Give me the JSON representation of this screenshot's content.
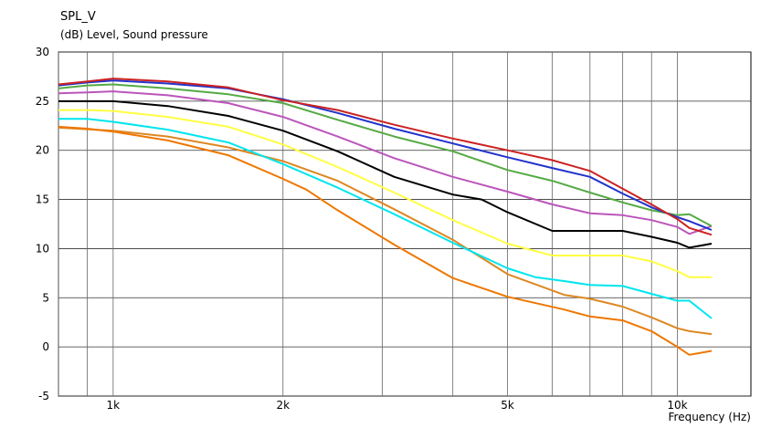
{
  "chart_data": {
    "type": "line",
    "title": "SPL_V",
    "ylabel": "(dB)  Level, Sound pressure",
    "xlabel": "Frequency  (Hz)",
    "xscale": "log",
    "xlim": [
      800,
      13500
    ],
    "ylim": [
      -5,
      30
    ],
    "yticks": [
      30,
      25,
      20,
      15,
      10,
      5,
      0,
      -5
    ],
    "xticks": [
      {
        "v": 1000,
        "label": "1k"
      },
      {
        "v": 2000,
        "label": "2k"
      },
      {
        "v": 5000,
        "label": "5k"
      },
      {
        "v": 10000,
        "label": "10k"
      }
    ],
    "x_minor": [
      800,
      900,
      1000,
      2000,
      3000,
      4000,
      5000,
      6000,
      7000,
      8000,
      9000,
      10000
    ],
    "grid": true,
    "series": [
      {
        "color": "#dd8822",
        "x": [
          800,
          1000,
          1250,
          1600,
          2000,
          2500,
          3150,
          4000,
          5000,
          6300,
          7000,
          8000,
          9000,
          10000,
          10500,
          11500
        ],
        "y": [
          22.3,
          22.0,
          21.4,
          20.3,
          18.9,
          16.9,
          14.0,
          10.9,
          7.4,
          5.3,
          4.9,
          4.1,
          3.0,
          1.9,
          1.6,
          1.3
        ]
      },
      {
        "color": "#ee7700",
        "x": [
          800,
          900,
          1000,
          1250,
          1600,
          2000,
          2200,
          2500,
          3150,
          4000,
          5000,
          6300,
          7000,
          8000,
          9000,
          10000,
          10500,
          11500
        ],
        "y": [
          22.4,
          22.2,
          21.9,
          21.0,
          19.5,
          17.1,
          16.0,
          13.9,
          10.4,
          7.0,
          5.1,
          3.8,
          3.1,
          2.7,
          1.6,
          0.0,
          -0.8,
          -0.4
        ]
      },
      {
        "color": "#00e5ee",
        "x": [
          800,
          900,
          1000,
          1250,
          1600,
          2000,
          2500,
          3150,
          4000,
          5000,
          5600,
          6300,
          7000,
          8000,
          9000,
          10000,
          10500,
          11500
        ],
        "y": [
          23.2,
          23.2,
          22.9,
          22.1,
          20.8,
          18.6,
          16.2,
          13.5,
          10.6,
          8.0,
          7.1,
          6.7,
          6.3,
          6.2,
          5.4,
          4.7,
          4.7,
          2.9
        ]
      },
      {
        "color": "#ffff44",
        "x": [
          800,
          900,
          1000,
          1250,
          1600,
          2000,
          2500,
          3150,
          4000,
          5000,
          6000,
          7000,
          8000,
          9000,
          10000,
          10500,
          11500
        ],
        "y": [
          24.1,
          24.1,
          24.0,
          23.4,
          22.4,
          20.6,
          18.3,
          15.7,
          12.9,
          10.5,
          9.3,
          9.3,
          9.3,
          8.7,
          7.7,
          7.1,
          7.1
        ]
      },
      {
        "color": "#000000",
        "x": [
          800,
          900,
          1000,
          1250,
          1600,
          2000,
          2500,
          3150,
          4000,
          4500,
          5000,
          6000,
          7000,
          8000,
          9000,
          10000,
          10500,
          11500
        ],
        "y": [
          25.0,
          25.0,
          25.0,
          24.5,
          23.5,
          22.0,
          19.9,
          17.3,
          15.5,
          15.0,
          13.7,
          11.8,
          11.8,
          11.8,
          11.2,
          10.6,
          10.1,
          10.5
        ]
      },
      {
        "color": "#bb55bb",
        "x": [
          800,
          900,
          1000,
          1250,
          1600,
          2000,
          2500,
          3150,
          4000,
          5000,
          6000,
          7000,
          8000,
          9000,
          10000,
          10500,
          11500
        ],
        "y": [
          25.8,
          25.9,
          26.0,
          25.6,
          24.8,
          23.4,
          21.4,
          19.2,
          17.3,
          15.8,
          14.5,
          13.6,
          13.4,
          12.9,
          12.2,
          11.5,
          12.3
        ]
      },
      {
        "color": "#55aa44",
        "x": [
          800,
          900,
          1000,
          1250,
          1600,
          2000,
          2500,
          3150,
          4000,
          5000,
          6000,
          7000,
          8000,
          9000,
          10000,
          10500,
          11500
        ],
        "y": [
          26.3,
          26.6,
          26.7,
          26.3,
          25.7,
          24.8,
          23.1,
          21.4,
          19.9,
          18.0,
          16.9,
          15.7,
          14.7,
          13.9,
          13.4,
          13.5,
          12.3
        ]
      },
      {
        "color": "#2233cc",
        "x": [
          800,
          900,
          1000,
          1250,
          1600,
          2000,
          2500,
          3150,
          4000,
          5000,
          6000,
          7000,
          8000,
          9000,
          10000,
          10500,
          11500
        ],
        "y": [
          26.6,
          26.9,
          27.1,
          26.8,
          26.3,
          25.2,
          23.8,
          22.2,
          20.7,
          19.3,
          18.2,
          17.3,
          15.6,
          14.2,
          13.2,
          12.8,
          11.9
        ]
      },
      {
        "color": "#cc2222",
        "x": [
          800,
          900,
          1000,
          1250,
          1600,
          2000,
          2500,
          3150,
          4000,
          5000,
          6000,
          7000,
          8000,
          9000,
          10000,
          10500,
          11500
        ],
        "y": [
          26.7,
          27.0,
          27.3,
          27.0,
          26.4,
          25.1,
          24.1,
          22.6,
          21.2,
          20.0,
          19.0,
          17.9,
          16.1,
          14.5,
          13.0,
          12.1,
          11.4
        ]
      }
    ]
  }
}
